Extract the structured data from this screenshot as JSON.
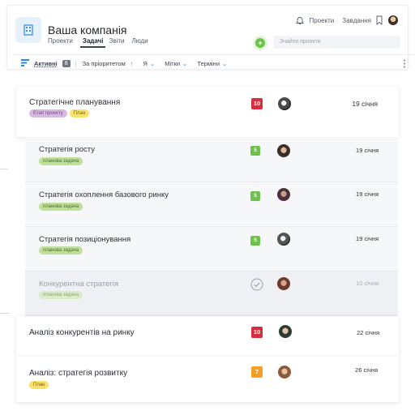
{
  "header": {
    "company": "Ваша компанія",
    "tabs": [
      {
        "label": "Проекти"
      },
      {
        "label": "Задачі"
      },
      {
        "label": "Звіти"
      },
      {
        "label": "Люди"
      }
    ],
    "links": [
      "Проекти",
      "Завдання"
    ],
    "search_placeholder": "Знайти проекти"
  },
  "filters": {
    "active_label": "Активні",
    "active_count": "8",
    "priority": "За пріоритетом",
    "assignee": "Я",
    "tags": "Мітки",
    "deadlines": "Терміни"
  },
  "colors": {
    "accent": "#2f86de",
    "red": "#d32f3f",
    "green": "#6cc24a",
    "orange": "#f5a023"
  },
  "tasks": [
    {
      "title": "Стратегічне планування",
      "tags": [
        "Етап проекту",
        "План"
      ],
      "badge": "10",
      "date": "19 січня"
    },
    {
      "title": "Стратегія росту",
      "tags": [
        "планова задача"
      ],
      "badge": "5",
      "date": "19 січня"
    },
    {
      "title": "Стратегія охоплення базового ринку",
      "tags": [
        "планова задача"
      ],
      "badge": "5",
      "date": "19 січня"
    },
    {
      "title": "Стратегія позиціонування",
      "tags": [
        "планова задача"
      ],
      "badge": "5",
      "date": "19 січня"
    },
    {
      "title": "Конкурентна стратегія",
      "tags": [
        "планова задача"
      ],
      "badge": "check-icon",
      "date": "10 січня"
    },
    {
      "title": "Аналіз конкурентів на ринку",
      "tags": [],
      "badge": "10",
      "date": "22 січня"
    },
    {
      "title": "Аналіз: стратегія розвитку",
      "tags": [
        "План"
      ],
      "badge": "7",
      "date": "26 січня"
    }
  ]
}
